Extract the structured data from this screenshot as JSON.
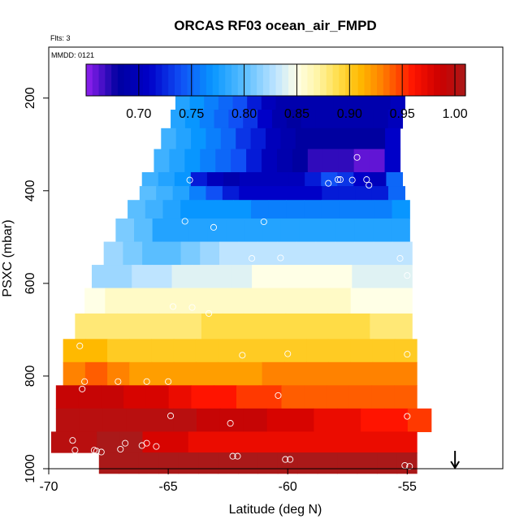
{
  "chart_data": {
    "type": "heatmap",
    "title": "ORCAS RF03 ocean_air_FMPD",
    "subtitle_left": "Flts: 3",
    "annotation": "MMDD: 0121",
    "xlabel": "Latitude (deg N)",
    "ylabel": "PSXC (mbar)",
    "xlim": [
      -70,
      -51
    ],
    "ylim": [
      1000,
      90
    ],
    "x_ticks": [
      -70,
      -65,
      -60,
      -55
    ],
    "x_tick_labels": [
      "-70",
      "-65",
      "-60",
      "-55"
    ],
    "y_ticks": [
      200,
      400,
      600,
      800,
      1000
    ],
    "y_tick_labels": [
      "200",
      "400",
      "600",
      "800",
      "1000"
    ],
    "colorbar": {
      "range": [
        0.65,
        1.01
      ],
      "ticks": [
        0.7,
        0.75,
        0.8,
        0.85,
        0.9,
        0.95,
        1.0
      ],
      "tick_labels": [
        "0.70",
        "0.75",
        "0.80",
        "0.85",
        "0.90",
        "0.95",
        "1.00"
      ]
    },
    "arrow_marker_latitude": -53.0,
    "bands": [
      {
        "p": [
          175,
          195
        ],
        "lat": [
          -64.6,
          -55.1
        ],
        "values": [
          0.77,
          0.76,
          0.75,
          0.74,
          0.73,
          0.72,
          0.7,
          0.69,
          0.69,
          0.69,
          0.7,
          0.7,
          0.7,
          0.69,
          0.69,
          0.7
        ]
      },
      {
        "p": [
          195,
          225
        ],
        "lat": [
          -64.7,
          -55.1
        ],
        "values": [
          0.78,
          0.77,
          0.76,
          0.75,
          0.74,
          0.72,
          0.7,
          0.69,
          0.69,
          0.69,
          0.69,
          0.69,
          0.69,
          0.69,
          0.69,
          0.7
        ]
      },
      {
        "p": [
          225,
          265
        ],
        "lat": [
          -64.9,
          -55.2
        ],
        "values": [
          0.78,
          0.77,
          0.76,
          0.75,
          0.74,
          0.73,
          0.71,
          0.69,
          0.68,
          0.69,
          0.69,
          0.69,
          0.69,
          0.69,
          0.69,
          0.7
        ]
      },
      {
        "p": [
          265,
          310
        ],
        "lat": [
          -65.3,
          -55.3
        ],
        "values": [
          0.79,
          0.78,
          0.77,
          0.76,
          0.75,
          0.73,
          0.72,
          0.7,
          0.69,
          0.68,
          0.68,
          0.68,
          0.68,
          0.68,
          0.68,
          0.71
        ]
      },
      {
        "p": [
          310,
          360
        ],
        "lat": [
          -65.6,
          -55.3
        ],
        "values": [
          0.79,
          0.78,
          0.77,
          0.76,
          0.75,
          0.74,
          0.72,
          0.7,
          0.69,
          0.68,
          0.67,
          0.67,
          0.67,
          0.66,
          0.66,
          0.71
        ]
      },
      {
        "p": [
          360,
          390
        ],
        "lat": [
          -66.1,
          -55.2
        ],
        "values": [
          0.79,
          0.78,
          0.77,
          0.72,
          0.7,
          0.69,
          0.7,
          0.7,
          0.7,
          0.7,
          0.72,
          0.74,
          0.73,
          0.71,
          0.7,
          0.75
        ]
      },
      {
        "p": [
          390,
          420
        ],
        "lat": [
          -66.2,
          -55.1
        ],
        "values": [
          0.8,
          0.79,
          0.78,
          0.76,
          0.74,
          0.72,
          0.71,
          0.71,
          0.71,
          0.71,
          0.71,
          0.72,
          0.72,
          0.72,
          0.72,
          0.75
        ]
      },
      {
        "p": [
          420,
          460
        ],
        "lat": [
          -66.7,
          -54.9
        ],
        "values": [
          0.8,
          0.79,
          0.78,
          0.77,
          0.77,
          0.77,
          0.77,
          0.76,
          0.76,
          0.76,
          0.76,
          0.76,
          0.76,
          0.76,
          0.76,
          0.77
        ]
      },
      {
        "p": [
          460,
          510
        ],
        "lat": [
          -67.2,
          -54.9
        ],
        "values": [
          0.81,
          0.8,
          0.78,
          0.78,
          0.78,
          0.78,
          0.78,
          0.78,
          0.78,
          0.78,
          0.78,
          0.78,
          0.78,
          0.78,
          0.78,
          0.78
        ]
      },
      {
        "p": [
          510,
          560
        ],
        "lat": [
          -67.7,
          -54.8
        ],
        "values": [
          0.82,
          0.81,
          0.8,
          0.8,
          0.81,
          0.82,
          0.83,
          0.83,
          0.83,
          0.83,
          0.83,
          0.83,
          0.83,
          0.83,
          0.83,
          0.83
        ]
      },
      {
        "p": [
          560,
          610
        ],
        "lat": [
          -68.2,
          -54.8
        ],
        "values": [
          0.82,
          0.82,
          0.83,
          0.83,
          0.84,
          0.84,
          0.84,
          0.84,
          0.85,
          0.85,
          0.85,
          0.85,
          0.85,
          0.84,
          0.84,
          0.84
        ]
      },
      {
        "p": [
          610,
          665
        ],
        "lat": [
          -68.5,
          -54.8
        ],
        "values": [
          0.85,
          0.86,
          0.86,
          0.86,
          0.86,
          0.86,
          0.86,
          0.86,
          0.86,
          0.86,
          0.86,
          0.86,
          0.86,
          0.85,
          0.85,
          0.85
        ]
      },
      {
        "p": [
          665,
          720
        ],
        "lat": [
          -68.9,
          -54.8
        ],
        "values": [
          0.88,
          0.88,
          0.88,
          0.88,
          0.88,
          0.88,
          0.89,
          0.89,
          0.89,
          0.89,
          0.89,
          0.89,
          0.89,
          0.89,
          0.88,
          0.88
        ]
      },
      {
        "p": [
          720,
          770
        ],
        "lat": [
          -69.4,
          -54.6
        ],
        "values": [
          0.91,
          0.91,
          0.9,
          0.9,
          0.9,
          0.9,
          0.9,
          0.9,
          0.9,
          0.9,
          0.9,
          0.9,
          0.9,
          0.9,
          0.9,
          0.9
        ]
      },
      {
        "p": [
          770,
          820
        ],
        "lat": [
          -69.4,
          -54.6
        ],
        "values": [
          0.93,
          0.94,
          0.93,
          0.92,
          0.92,
          0.92,
          0.92,
          0.92,
          0.92,
          0.93,
          0.93,
          0.93,
          0.93,
          0.93,
          0.93,
          0.93
        ]
      },
      {
        "p": [
          820,
          870
        ],
        "lat": [
          -69.7,
          -54.6
        ],
        "values": [
          0.99,
          0.99,
          0.99,
          0.98,
          0.98,
          0.97,
          0.96,
          0.96,
          0.95,
          0.95,
          0.94,
          0.94,
          0.94,
          0.94,
          0.94,
          0.94
        ]
      },
      {
        "p": [
          870,
          920
        ],
        "lat": [
          -69.7,
          -54.0
        ],
        "values": [
          1.0,
          1.0,
          1.0,
          1.0,
          1.0,
          1.0,
          0.99,
          0.99,
          0.99,
          0.98,
          0.98,
          0.97,
          0.97,
          0.96,
          0.96,
          0.95
        ]
      },
      {
        "p": [
          920,
          965
        ],
        "lat": [
          -69.9,
          -54.6
        ],
        "values": [
          1.0,
          1.0,
          1.01,
          1.01,
          0.98,
          0.98,
          0.97,
          0.97,
          0.97,
          0.97,
          0.97,
          0.97,
          0.97,
          0.97,
          0.97,
          0.97
        ]
      },
      {
        "p": [
          965,
          1010
        ],
        "lat": [
          -67.9,
          -54.6
        ],
        "values": [
          1.01,
          1.01,
          1.01,
          1.01,
          1.01,
          1.01,
          1.01,
          1.01,
          1.01,
          1.01,
          1.01,
          1.01,
          1.01,
          1.01,
          1.01,
          1.01
        ]
      }
    ],
    "points": [
      [
        -64.5,
        180
      ],
      [
        -61.8,
        180
      ],
      [
        -58.1,
        180
      ],
      [
        -57.8,
        183
      ],
      [
        -57.7,
        183
      ],
      [
        -57.2,
        180
      ],
      [
        -55.2,
        180
      ],
      [
        -57.1,
        328
      ],
      [
        -64.1,
        377
      ],
      [
        -58.3,
        384
      ],
      [
        -57.9,
        376
      ],
      [
        -57.8,
        376
      ],
      [
        -57.3,
        377
      ],
      [
        -56.7,
        376
      ],
      [
        -56.6,
        388
      ],
      [
        -64.3,
        466
      ],
      [
        -63.1,
        479
      ],
      [
        -61.0,
        467
      ],
      [
        -61.5,
        546
      ],
      [
        -60.3,
        545
      ],
      [
        -55.3,
        546
      ],
      [
        -55.0,
        583
      ],
      [
        -64.8,
        650
      ],
      [
        -64.0,
        652
      ],
      [
        -63.3,
        665
      ],
      [
        -68.7,
        735
      ],
      [
        -60.0,
        752
      ],
      [
        -61.9,
        755
      ],
      [
        -55.0,
        753
      ],
      [
        -68.5,
        812
      ],
      [
        -68.6,
        828
      ],
      [
        -67.1,
        812
      ],
      [
        -65.9,
        812
      ],
      [
        -65.0,
        812
      ],
      [
        -60.4,
        842
      ],
      [
        -64.9,
        886
      ],
      [
        -62.4,
        902
      ],
      [
        -55.0,
        887
      ],
      [
        -69.0,
        939
      ],
      [
        -68.9,
        960
      ],
      [
        -68.1,
        960
      ],
      [
        -68.0,
        962
      ],
      [
        -67.8,
        964
      ],
      [
        -67.0,
        958
      ],
      [
        -66.8,
        945
      ],
      [
        -66.1,
        950
      ],
      [
        -65.9,
        945
      ],
      [
        -65.5,
        952
      ],
      [
        -62.3,
        973
      ],
      [
        -62.1,
        973
      ],
      [
        -60.1,
        980
      ],
      [
        -59.9,
        980
      ],
      [
        -55.1,
        993
      ],
      [
        -54.9,
        995
      ]
    ]
  }
}
